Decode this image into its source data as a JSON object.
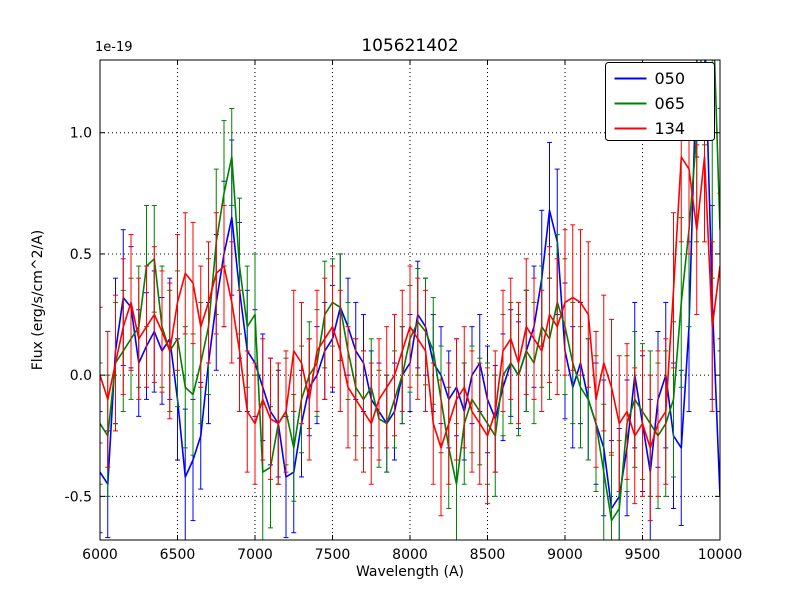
{
  "figure": {
    "title": "105621402",
    "xlabel": "Wavelength (A)",
    "ylabel": "Flux (erg/s/cm^2/A)",
    "offset_text": "1e-19"
  },
  "chart_data": {
    "type": "line",
    "title": "105621402",
    "xlabel": "Wavelength (A)",
    "ylabel": "Flux (erg/s/cm^2/A)",
    "y_scale_factor": "1e-19",
    "grid": true,
    "grid_style": "dotted",
    "legend_position": "upper right",
    "xlim": [
      6000,
      10000
    ],
    "ylim": [
      -0.68,
      1.3
    ],
    "xticks": [
      6000,
      6500,
      7000,
      7500,
      8000,
      8500,
      9000,
      9500,
      10000
    ],
    "xtick_labels": [
      "6000",
      "6500",
      "7000",
      "7500",
      "8000",
      "8500",
      "9000",
      "9500",
      "10000"
    ],
    "yticks": [
      -0.5,
      0.0,
      0.5,
      1.0
    ],
    "ytick_labels": [
      "-0.5",
      "0.0",
      "0.5",
      "1.0"
    ],
    "x": [
      6000,
      6050,
      6100,
      6150,
      6200,
      6250,
      6300,
      6350,
      6400,
      6450,
      6500,
      6550,
      6600,
      6650,
      6700,
      6750,
      6800,
      6850,
      6900,
      6950,
      7000,
      7050,
      7100,
      7150,
      7200,
      7250,
      7300,
      7350,
      7400,
      7450,
      7500,
      7550,
      7600,
      7650,
      7700,
      7750,
      7800,
      7850,
      7900,
      7950,
      8000,
      8050,
      8100,
      8150,
      8200,
      8250,
      8300,
      8350,
      8400,
      8450,
      8500,
      8550,
      8600,
      8650,
      8700,
      8750,
      8800,
      8850,
      8900,
      8950,
      9000,
      9050,
      9100,
      9150,
      9200,
      9250,
      9300,
      9350,
      9400,
      9450,
      9500,
      9550,
      9600,
      9650,
      9700,
      9750,
      9800,
      9850,
      9900,
      9950,
      10000
    ],
    "series": [
      {
        "name": "050",
        "color": "#0000ff",
        "values": [
          -0.4,
          -0.45,
          0.1,
          0.32,
          0.28,
          0.05,
          0.12,
          0.18,
          0.1,
          0.15,
          -0.1,
          -0.42,
          -0.35,
          -0.25,
          0.05,
          0.3,
          0.5,
          0.65,
          0.35,
          0.1,
          0.05,
          -0.05,
          -0.15,
          -0.2,
          -0.42,
          -0.4,
          -0.2,
          -0.05,
          0.0,
          0.1,
          0.15,
          0.28,
          0.2,
          0.1,
          0.05,
          -0.1,
          -0.15,
          -0.2,
          -0.15,
          0.0,
          0.05,
          0.25,
          0.2,
          0.05,
          0.0,
          -0.1,
          -0.05,
          -0.15,
          0.0,
          0.05,
          -0.1,
          -0.18,
          -0.05,
          0.05,
          0.0,
          0.1,
          0.2,
          0.4,
          0.68,
          0.55,
          0.1,
          -0.05,
          0.05,
          -0.1,
          -0.2,
          -0.3,
          -0.55,
          -0.5,
          -0.3,
          0.0,
          -0.2,
          -0.4,
          -0.1,
          0.0,
          -0.25,
          -0.3,
          0.2,
          1.3,
          1.45,
          0.3,
          -0.5
        ],
        "errors": [
          0.25,
          0.22,
          0.3,
          0.28,
          0.25,
          0.22,
          0.22,
          0.25,
          0.22,
          0.25,
          0.25,
          0.28,
          0.25,
          0.22,
          0.25,
          0.28,
          0.3,
          0.32,
          0.28,
          0.25,
          0.22,
          0.22,
          0.22,
          0.22,
          0.25,
          0.25,
          0.22,
          0.2,
          0.2,
          0.2,
          0.22,
          0.22,
          0.2,
          0.2,
          0.2,
          0.2,
          0.2,
          0.2,
          0.2,
          0.2,
          0.2,
          0.22,
          0.2,
          0.2,
          0.2,
          0.2,
          0.2,
          0.2,
          0.2,
          0.2,
          0.22,
          0.22,
          0.22,
          0.22,
          0.22,
          0.25,
          0.25,
          0.28,
          0.28,
          0.3,
          0.28,
          0.25,
          0.25,
          0.25,
          0.25,
          0.28,
          0.28,
          0.28,
          0.28,
          0.3,
          0.28,
          0.3,
          0.28,
          0.3,
          0.3,
          0.32,
          0.35,
          0.4,
          0.45,
          0.4,
          0.35
        ]
      },
      {
        "name": "065",
        "color": "#008000",
        "values": [
          -0.2,
          -0.25,
          0.05,
          0.1,
          0.15,
          0.2,
          0.45,
          0.48,
          0.2,
          0.1,
          0.15,
          -0.05,
          -0.08,
          0.05,
          0.2,
          0.55,
          0.75,
          0.9,
          0.45,
          0.2,
          0.25,
          -0.4,
          -0.38,
          -0.2,
          -0.15,
          -0.3,
          -0.1,
          0.0,
          0.05,
          0.25,
          0.3,
          0.28,
          0.1,
          -0.05,
          -0.1,
          -0.05,
          -0.18,
          -0.2,
          -0.1,
          0.0,
          0.15,
          0.22,
          0.18,
          0.1,
          -0.1,
          -0.3,
          -0.45,
          -0.2,
          -0.1,
          -0.15,
          -0.2,
          -0.25,
          0.0,
          0.05,
          0.0,
          0.1,
          0.05,
          0.2,
          0.15,
          0.3,
          0.2,
          0.05,
          -0.05,
          -0.1,
          -0.2,
          -0.4,
          -0.6,
          -0.55,
          -0.2,
          -0.1,
          -0.15,
          -0.2,
          -0.25,
          -0.2,
          -0.1,
          0.3,
          0.6,
          1.0,
          1.55,
          1.6,
          0.6
        ],
        "errors": [
          0.25,
          0.25,
          0.25,
          0.25,
          0.25,
          0.25,
          0.25,
          0.22,
          0.25,
          0.25,
          0.28,
          0.25,
          0.25,
          0.25,
          0.28,
          0.3,
          0.3,
          0.2,
          0.28,
          0.25,
          0.25,
          0.28,
          0.25,
          0.25,
          0.22,
          0.22,
          0.22,
          0.22,
          0.22,
          0.22,
          0.18,
          0.22,
          0.2,
          0.2,
          0.2,
          0.2,
          0.2,
          0.2,
          0.2,
          0.2,
          0.22,
          0.22,
          0.22,
          0.22,
          0.22,
          0.25,
          0.25,
          0.25,
          0.22,
          0.22,
          0.25,
          0.25,
          0.25,
          0.25,
          0.25,
          0.25,
          0.25,
          0.25,
          0.25,
          0.28,
          0.28,
          0.25,
          0.25,
          0.25,
          0.28,
          0.28,
          0.28,
          0.28,
          0.28,
          0.28,
          0.28,
          0.3,
          0.3,
          0.3,
          0.32,
          0.35,
          0.4,
          0.45,
          0.6,
          1.2,
          0.5
        ]
      },
      {
        "name": "134",
        "color": "#ff0000",
        "values": [
          0.0,
          -0.1,
          0.05,
          0.2,
          0.3,
          0.15,
          0.2,
          0.25,
          0.18,
          0.1,
          0.3,
          0.42,
          0.38,
          0.2,
          0.3,
          0.42,
          0.45,
          0.3,
          0.1,
          -0.15,
          -0.2,
          -0.1,
          -0.18,
          -0.2,
          -0.15,
          0.1,
          0.05,
          -0.1,
          0.1,
          0.15,
          0.2,
          0.1,
          -0.05,
          -0.1,
          -0.15,
          -0.2,
          -0.1,
          -0.05,
          0.0,
          0.1,
          0.2,
          0.15,
          0.1,
          -0.2,
          -0.3,
          -0.2,
          -0.1,
          -0.05,
          -0.15,
          -0.2,
          -0.25,
          -0.15,
          0.1,
          0.15,
          0.05,
          0.2,
          0.15,
          0.1,
          0.25,
          0.2,
          0.3,
          0.32,
          0.3,
          0.25,
          -0.1,
          0.05,
          -0.05,
          -0.2,
          -0.15,
          -0.25,
          -0.2,
          -0.3,
          -0.2,
          -0.15,
          0.35,
          0.9,
          0.85,
          0.6,
          0.9,
          0.2,
          0.45
        ],
        "errors": [
          0.28,
          0.28,
          0.28,
          0.28,
          0.28,
          0.25,
          0.25,
          0.28,
          0.25,
          0.28,
          0.28,
          0.25,
          0.25,
          0.25,
          0.25,
          0.25,
          0.25,
          0.25,
          0.25,
          0.25,
          0.25,
          0.25,
          0.25,
          0.25,
          0.25,
          0.25,
          0.25,
          0.25,
          0.25,
          0.25,
          0.25,
          0.25,
          0.25,
          0.25,
          0.25,
          0.25,
          0.25,
          0.25,
          0.25,
          0.25,
          0.25,
          0.25,
          0.25,
          0.25,
          0.28,
          0.25,
          0.25,
          0.25,
          0.25,
          0.25,
          0.28,
          0.25,
          0.25,
          0.25,
          0.25,
          0.28,
          0.25,
          0.25,
          0.28,
          0.28,
          0.3,
          0.3,
          0.3,
          0.3,
          0.28,
          0.28,
          0.28,
          0.28,
          0.28,
          0.28,
          0.3,
          0.3,
          0.3,
          0.3,
          0.32,
          0.35,
          0.35,
          0.35,
          0.35,
          0.35,
          0.3
        ]
      }
    ]
  }
}
